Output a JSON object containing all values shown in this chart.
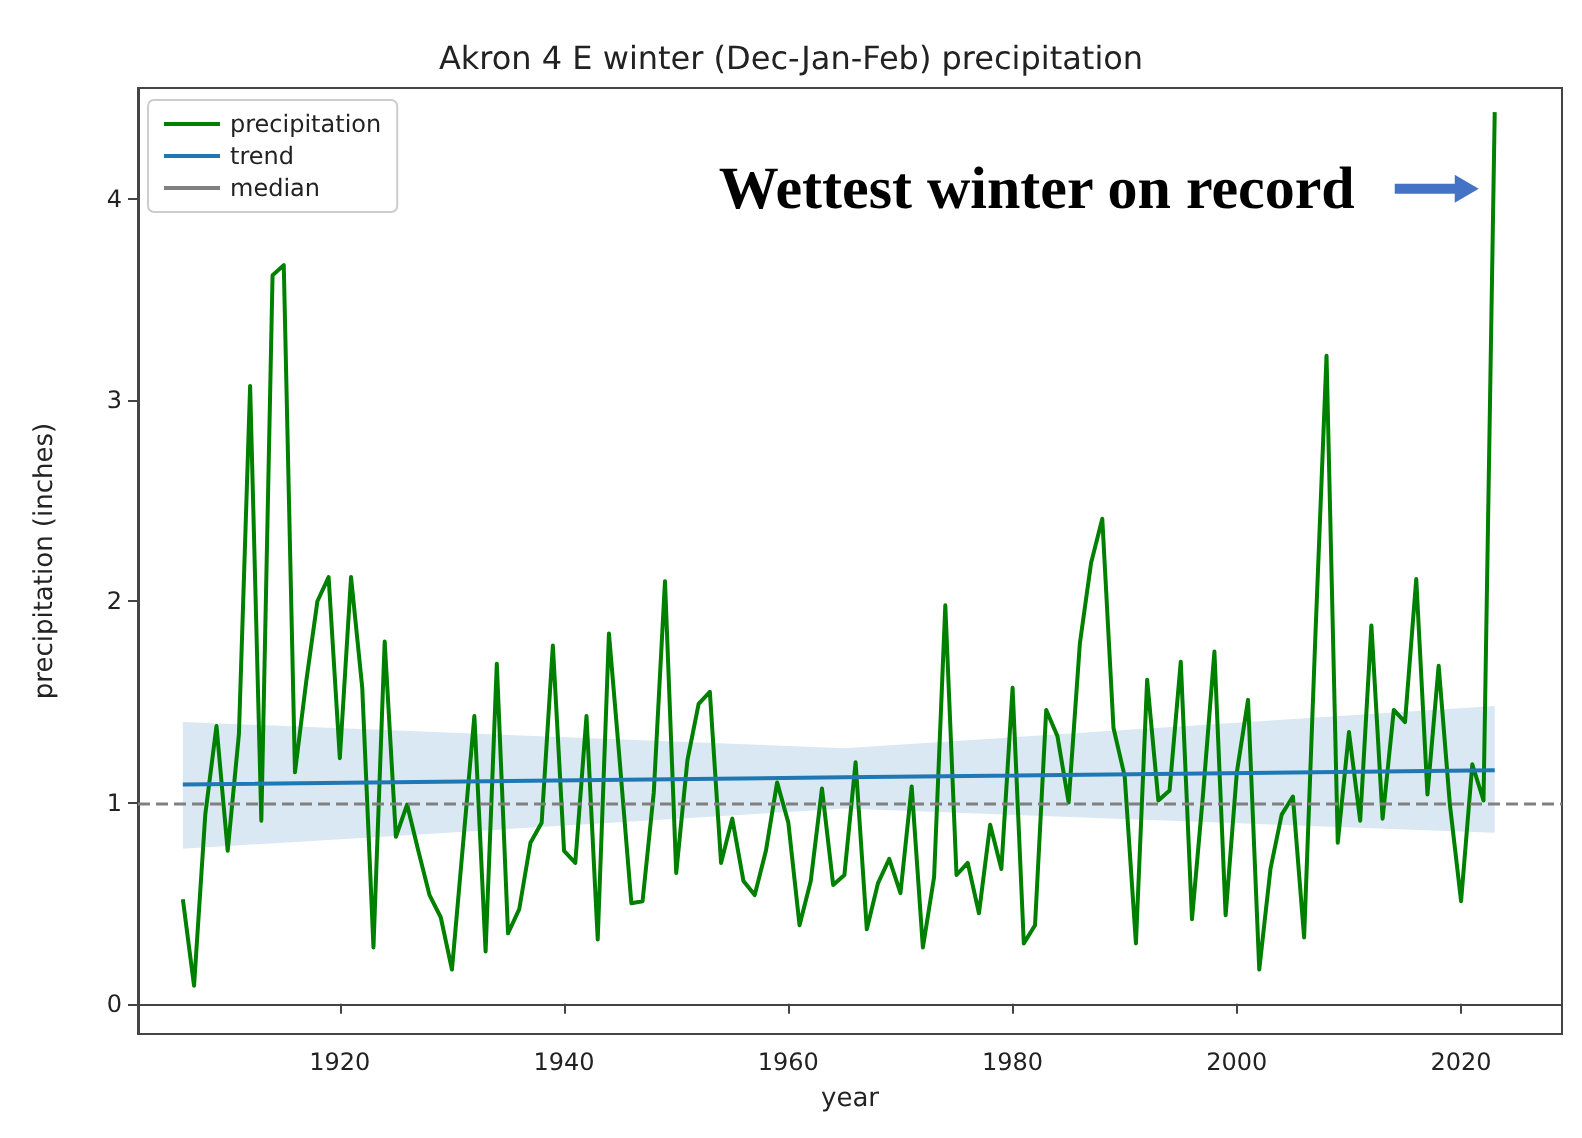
{
  "chart_data": {
    "type": "line",
    "title": "Akron 4 E winter (Dec-Jan-Feb) precipitation",
    "xlabel": "year",
    "ylabel": "precipitation (inches)",
    "x": [
      1906,
      1907,
      1908,
      1909,
      1910,
      1911,
      1912,
      1913,
      1914,
      1915,
      1916,
      1917,
      1918,
      1919,
      1920,
      1921,
      1922,
      1923,
      1924,
      1925,
      1926,
      1927,
      1928,
      1929,
      1930,
      1931,
      1932,
      1933,
      1934,
      1935,
      1936,
      1937,
      1938,
      1939,
      1940,
      1941,
      1942,
      1943,
      1944,
      1945,
      1946,
      1947,
      1948,
      1949,
      1950,
      1951,
      1952,
      1953,
      1954,
      1955,
      1956,
      1957,
      1958,
      1959,
      1960,
      1961,
      1962,
      1963,
      1964,
      1965,
      1966,
      1967,
      1968,
      1969,
      1970,
      1971,
      1972,
      1973,
      1974,
      1975,
      1976,
      1977,
      1978,
      1979,
      1980,
      1981,
      1982,
      1983,
      1984,
      1985,
      1986,
      1987,
      1988,
      1989,
      1990,
      1991,
      1992,
      1993,
      1994,
      1995,
      1996,
      1997,
      1998,
      1999,
      2000,
      2001,
      2002,
      2003,
      2004,
      2005,
      2006,
      2007,
      2008,
      2009,
      2010,
      2011,
      2012,
      2013,
      2014,
      2015,
      2016,
      2017,
      2018,
      2019,
      2020,
      2021,
      2022,
      2023
    ],
    "series": [
      {
        "name": "precipitation",
        "color": "#008000",
        "values": [
          0.52,
          0.09,
          0.94,
          1.38,
          0.76,
          1.34,
          3.07,
          0.91,
          3.62,
          3.67,
          1.15,
          1.6,
          2.0,
          2.12,
          1.22,
          2.12,
          1.57,
          0.28,
          1.8,
          0.83,
          0.99,
          0.76,
          0.54,
          0.43,
          0.17,
          0.8,
          1.43,
          0.26,
          1.69,
          0.35,
          0.47,
          0.8,
          0.9,
          1.78,
          0.76,
          0.7,
          1.43,
          0.32,
          1.84,
          1.18,
          0.5,
          0.51,
          1.05,
          2.1,
          0.65,
          1.21,
          1.49,
          1.55,
          0.7,
          0.92,
          0.61,
          0.54,
          0.76,
          1.1,
          0.9,
          0.39,
          0.61,
          1.07,
          0.59,
          0.64,
          1.2,
          0.37,
          0.6,
          0.72,
          0.55,
          1.08,
          0.28,
          0.63,
          1.98,
          0.64,
          0.7,
          0.45,
          0.89,
          0.67,
          1.57,
          0.3,
          0.39,
          1.46,
          1.33,
          1.0,
          1.79,
          2.19,
          2.41,
          1.37,
          1.13,
          0.3,
          1.61,
          1.01,
          1.06,
          1.7,
          0.42,
          1.05,
          1.75,
          0.44,
          1.15,
          1.51,
          0.17,
          0.67,
          0.94,
          1.03,
          0.33,
          1.82,
          3.22,
          0.8,
          1.35,
          0.91,
          1.88,
          0.92,
          1.46,
          1.4,
          2.11,
          1.04,
          1.68,
          0.99,
          0.51,
          1.19,
          1.01,
          4.43
        ]
      },
      {
        "name": "trend",
        "color": "#1f77b4",
        "x": [
          1906,
          1965,
          2023
        ],
        "values": [
          1.09,
          1.125,
          1.16
        ],
        "lower": [
          0.77,
          0.97,
          0.85
        ],
        "upper": [
          1.4,
          1.27,
          1.48
        ]
      }
    ],
    "ref_lines": [
      {
        "axis": "y",
        "value": 1.0,
        "label": "median",
        "color": "#808080",
        "line_style": "dashed"
      }
    ],
    "annotations": [
      {
        "text": "Wettest winter on record",
        "x": 2023,
        "y": 4.05
      }
    ],
    "xlim": [
      1902,
      2029
    ],
    "xticks": [
      1920,
      1940,
      1960,
      1980,
      2000,
      2020
    ],
    "ylim": [
      -0.15,
      4.55
    ],
    "yticks": [
      0,
      1,
      2,
      3,
      4
    ],
    "grid": false,
    "legend": "top left",
    "marker": "none"
  }
}
